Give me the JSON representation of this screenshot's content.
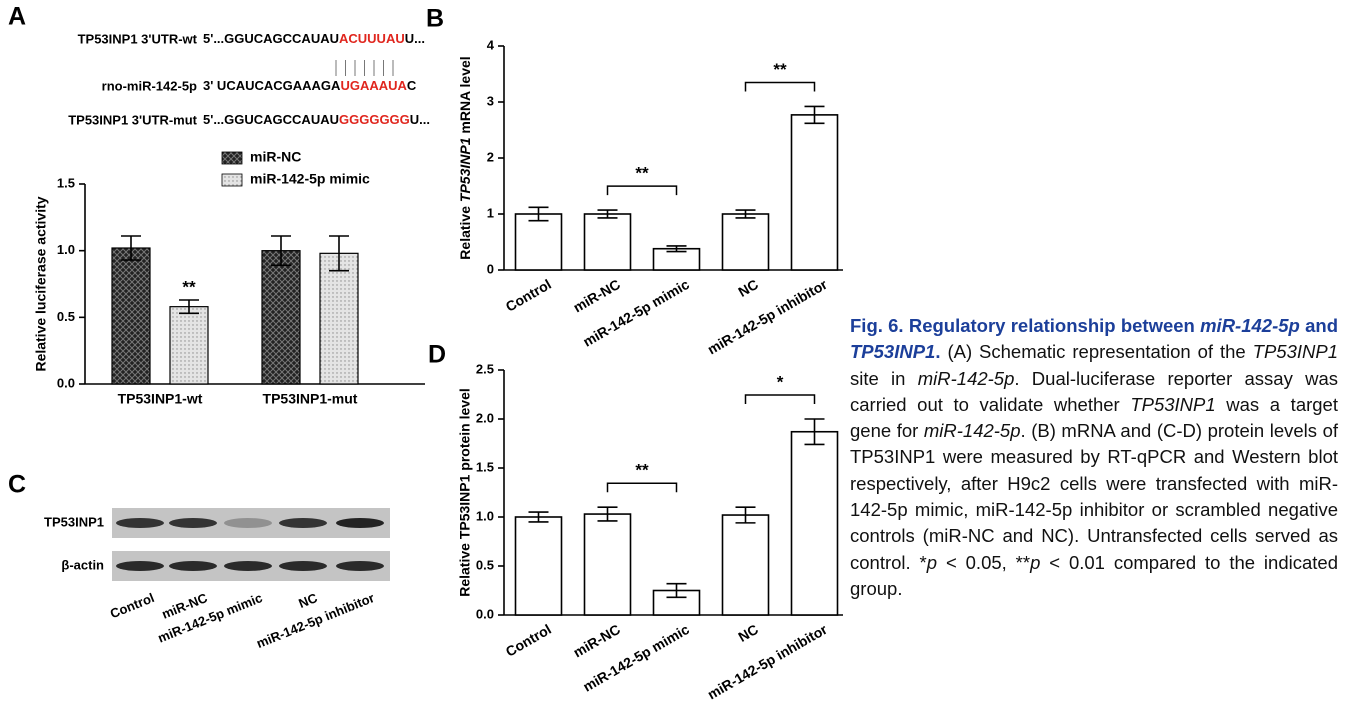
{
  "panel_a": {
    "label": "A",
    "sequences": [
      {
        "label": "TP53INP1 3'UTR-wt",
        "prefix": "5'...GGUCAGCCAUAU",
        "highlight": "ACUUUAU",
        "suffix": "U..."
      },
      {
        "label": "rno-miR-142-5p",
        "prefix": "3' UCAUCACGAAAGA",
        "highlight": "UGAAAUA",
        "suffix": "C"
      },
      {
        "label": "TP53INP1 3'UTR-mut",
        "prefix": "5'...GGUCAGCCAUAU",
        "highlight": "GGGGGGG",
        "suffix": "U..."
      }
    ]
  },
  "panel_c": {
    "label": "C",
    "rows": [
      "TP53INP1",
      "β-actin"
    ],
    "lanes": [
      "Control",
      "miR-NC",
      "miR-142-5p mimic",
      "NC",
      "miR-142-5p inhibitor"
    ]
  },
  "chart_data": [
    {
      "type": "grouped-bar",
      "ylabel": "Relative luciferase activity",
      "categories": [
        "TP53INP1-wt",
        "TP53INP1-mut"
      ],
      "series": [
        {
          "name": "miR-NC",
          "color": "#2b2b2b",
          "pattern": "crosshatch",
          "values": [
            1.02,
            1.0
          ],
          "errors": [
            0.09,
            0.11
          ]
        },
        {
          "name": "miR-142-5p mimic",
          "color": "#d9d9d9",
          "pattern": "dots",
          "values": [
            0.58,
            0.98
          ],
          "errors": [
            0.05,
            0.13
          ]
        }
      ],
      "annotations": [
        {
          "text": "**",
          "series": "miR-142-5p mimic",
          "category": "TP53INP1-wt"
        }
      ],
      "ylim": [
        0,
        1.5
      ],
      "yticks": [
        {
          "value": 0,
          "label": "0.0"
        },
        0.5,
        {
          "value": 1,
          "label": "1.0"
        },
        1.5
      ],
      "legend": "top-right"
    },
    {
      "type": "bar",
      "label": "B",
      "ylabel": [
        {
          "text": "Relative ",
          "italic": false
        },
        {
          "text": "TP53INP1",
          "italic": true
        },
        {
          "text": " mRNA level",
          "italic": false
        }
      ],
      "categories": [
        "Control",
        "miR-NC",
        "miR-142-5p mimic",
        "NC",
        "miR-142-5p inhibitor"
      ],
      "values": [
        1.0,
        1.0,
        0.38,
        1.0,
        2.77
      ],
      "errors": [
        0.12,
        0.07,
        0.05,
        0.07,
        0.15
      ],
      "color": "#ffffff",
      "annotations": [
        {
          "text": "**",
          "between": [
            "miR-NC",
            "miR-142-5p mimic"
          ]
        },
        {
          "text": "**",
          "between": [
            "NC",
            "miR-142-5p inhibitor"
          ]
        }
      ],
      "ylim": [
        0,
        4
      ],
      "yticks": [
        0,
        1,
        2,
        3,
        4
      ]
    },
    {
      "type": "bar",
      "label": "D",
      "ylabel": "Relative TP53INP1 protein level",
      "categories": [
        "Control",
        "miR-NC",
        "miR-142-5p mimic",
        "NC",
        "miR-142-5p inhibitor"
      ],
      "values": [
        1.0,
        1.03,
        0.25,
        1.02,
        1.87
      ],
      "errors": [
        0.05,
        0.07,
        0.07,
        0.08,
        0.13
      ],
      "color": "#ffffff",
      "annotations": [
        {
          "text": "**",
          "between": [
            "miR-NC",
            "miR-142-5p mimic"
          ]
        },
        {
          "text": "*",
          "between": [
            "NC",
            "miR-142-5p inhibitor"
          ]
        }
      ],
      "ylim": [
        0,
        2.5
      ],
      "yticks": [
        {
          "value": 0,
          "label": "0.0"
        },
        0.5,
        {
          "value": 1,
          "label": "1.0"
        },
        1.5,
        {
          "value": 2,
          "label": "2.0"
        },
        2.5
      ]
    }
  ],
  "caption": {
    "title": [
      {
        "text": "Fig. 6. Regulatory relationship between ",
        "italic": false
      },
      {
        "text": "miR-142-5p",
        "italic": true
      },
      {
        "text": " and ",
        "italic": false
      },
      {
        "text": "TP53INP1",
        "italic": true
      },
      {
        "text": ".",
        "italic": false
      }
    ],
    "body": [
      {
        "text": " (A) Schematic representation of the ",
        "italic": false
      },
      {
        "text": "TP53INP1",
        "italic": true
      },
      {
        "text": " site in ",
        "italic": false
      },
      {
        "text": "miR-142-5p",
        "italic": true
      },
      {
        "text": ". Dual-luciferase reporter assay was carried out to validate whether ",
        "italic": false
      },
      {
        "text": "TP53INP1",
        "italic": true
      },
      {
        "text": " was a target gene for ",
        "italic": false
      },
      {
        "text": "miR-142-5p",
        "italic": true
      },
      {
        "text": ". (B) mRNA and (C-D) protein levels of TP53INP1 were measured by RT-qPCR and Western blot respectively, after H9c2 cells were transfected with miR-142-5p mimic, miR-142-5p inhibitor or scrambled negative controls (miR-NC and NC). Untransfected cells served as control. *",
        "italic": false
      },
      {
        "text": "p",
        "italic": true
      },
      {
        "text": " < 0.05, **",
        "italic": false
      },
      {
        "text": "p",
        "italic": true
      },
      {
        "text": " < 0.01 compared to the indicated group.",
        "italic": false
      }
    ]
  }
}
